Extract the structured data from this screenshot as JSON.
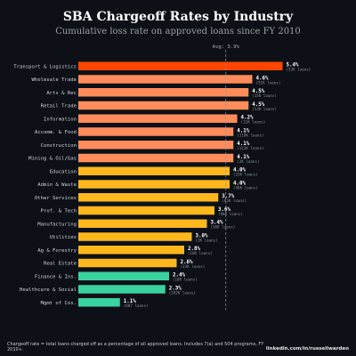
{
  "chart_data": {
    "type": "bar",
    "orientation": "horizontal",
    "title": "SBA Chargeoff Rates by Industry",
    "subtitle": "Cumulative loss rate on approved loans since FY 2010",
    "xlim": [
      0,
      6.4
    ],
    "average": {
      "label": "Avg: 3.9%",
      "value": 3.9
    },
    "categories": [
      "Transport & Logistics",
      "Wholesale Trade",
      "Arts & Rec",
      "Retail Trade",
      "Information",
      "Accomm. & Food",
      "Construction",
      "Mining & Oil/Gas",
      "Education",
      "Admin & Waste",
      "Other Services",
      "Prof. & Tech",
      "Manufacturing",
      "Utilities",
      "Ag & Forestry",
      "Real Estate",
      "Finance & Ins.",
      "Healthcare & Social",
      "Mgmt of Cos."
    ],
    "values": [
      5.4,
      4.6,
      4.5,
      4.5,
      4.2,
      4.1,
      4.1,
      4.1,
      4.0,
      4.0,
      3.7,
      3.6,
      3.4,
      3.0,
      2.8,
      2.6,
      2.4,
      2.3,
      1.1
    ],
    "value_labels": [
      "5.4%",
      "4.6%",
      "4.5%",
      "4.5%",
      "4.2%",
      "4.1%",
      "4.1%",
      "4.1%",
      "4.0%",
      "4.0%",
      "3.7%",
      "3.6%",
      "3.4%",
      "3.0%",
      "2.8%",
      "2.6%",
      "2.4%",
      "2.3%",
      "1.1%"
    ],
    "loan_labels": [
      "(53K loans)",
      "(51K loans)",
      "(15K loans)",
      "(53K loans)",
      "(11K loans)",
      "(119K loans)",
      "(111K loans)",
      "(2K loans)",
      "(15K loans)",
      "(46K loans)",
      "(83K loans)",
      "(98K loans)",
      "(56K loans)",
      "(2K loans)",
      "(10K loans)",
      "(33K loans)",
      "(18K loans)",
      "(102K loans)",
      "(687 loans)"
    ],
    "colors": [
      "#ff4500",
      "#ff8c5a",
      "#ff8c5a",
      "#ff8c5a",
      "#ff8c5a",
      "#ff8c5a",
      "#ff8c5a",
      "#ff8c5a",
      "#ffb81c",
      "#ffb81c",
      "#ffb81c",
      "#ffb81c",
      "#ffb81c",
      "#ffb81c",
      "#ffb81c",
      "#ffb81c",
      "#3ad29f",
      "#3ad29f",
      "#3ad29f"
    ],
    "grid": false
  },
  "footer": {
    "note": "Chargeoff rate = total loans charged off as a percentage of all approved loans. Includes 7(a) and 504 programs, FY 2010+.",
    "credit": "linkedin.com/in/russellwarden"
  }
}
